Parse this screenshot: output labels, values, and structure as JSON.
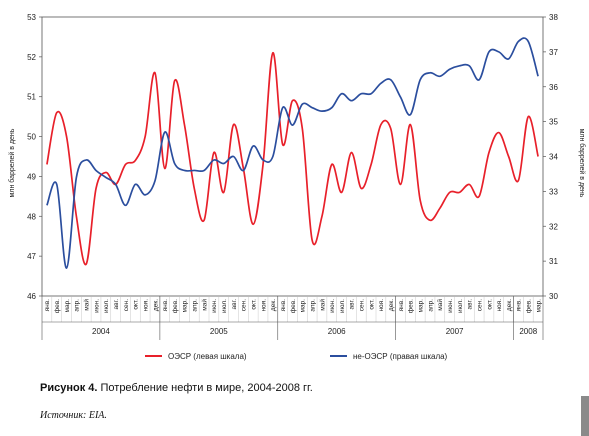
{
  "chart_data": {
    "type": "line",
    "title": "",
    "ylabel_left": "млн баррелей в день",
    "ylabel_right": "млн баррелей в день",
    "ylim_left": [
      46,
      53
    ],
    "ylim_right": [
      30,
      38
    ],
    "yticks_left": [
      "46",
      "47",
      "48",
      "49",
      "50",
      "51",
      "52",
      "53"
    ],
    "yticks_right": [
      "30",
      "31",
      "32",
      "33",
      "34",
      "35",
      "36",
      "37",
      "38"
    ],
    "months": [
      "янв.",
      "фев.",
      "мар.",
      "апр.",
      "май",
      "июн.",
      "июл.",
      "авг.",
      "сен.",
      "окт.",
      "ноя.",
      "дек.",
      "янв.",
      "фев.",
      "мар.",
      "апр.",
      "май",
      "июн.",
      "июл.",
      "авг.",
      "сен.",
      "окт.",
      "ноя.",
      "дек.",
      "янв.",
      "фев.",
      "мар.",
      "апр.",
      "май",
      "июн.",
      "июл.",
      "авг.",
      "сен.",
      "окт.",
      "ноя.",
      "дек.",
      "янв.",
      "фев.",
      "мар.",
      "апр.",
      "май",
      "июн.",
      "июл.",
      "авг.",
      "сен.",
      "окт.",
      "ноя.",
      "дек.",
      "янв.",
      "фев.",
      "мар."
    ],
    "years": [
      {
        "label": "2004",
        "start": 0,
        "end": 12
      },
      {
        "label": "2005",
        "start": 12,
        "end": 24
      },
      {
        "label": "2006",
        "start": 24,
        "end": 36
      },
      {
        "label": "2007",
        "start": 36,
        "end": 48
      },
      {
        "label": "2008",
        "start": 48,
        "end": 51
      }
    ],
    "series": [
      {
        "name": "ОЭСР (левая шкала)",
        "axis": "left",
        "color": "#e8202a",
        "values": [
          49.3,
          50.6,
          50.0,
          48.0,
          46.8,
          48.7,
          49.1,
          48.8,
          49.3,
          49.4,
          50.0,
          51.6,
          49.2,
          51.4,
          50.3,
          48.7,
          47.9,
          49.6,
          48.6,
          50.3,
          49.2,
          47.8,
          49.3,
          52.1,
          49.8,
          50.9,
          50.2,
          47.4,
          48.0,
          49.3,
          48.6,
          49.6,
          48.7,
          49.3,
          50.3,
          50.2,
          48.8,
          50.3,
          48.4,
          47.9,
          48.2,
          48.6,
          48.6,
          48.8,
          48.5,
          49.6,
          50.1,
          49.5,
          48.9,
          50.5,
          49.5
        ]
      },
      {
        "name": "не-ОЭСР (правая шкала)",
        "axis": "right",
        "color": "#2b4e9e",
        "values": [
          32.6,
          33.2,
          30.8,
          33.4,
          33.9,
          33.6,
          33.4,
          33.2,
          32.6,
          33.2,
          32.9,
          33.3,
          34.7,
          33.8,
          33.6,
          33.6,
          33.6,
          33.9,
          33.8,
          34.0,
          33.6,
          34.3,
          33.9,
          34.0,
          35.4,
          34.9,
          35.5,
          35.4,
          35.3,
          35.4,
          35.8,
          35.6,
          35.8,
          35.8,
          36.1,
          36.2,
          35.7,
          35.2,
          36.2,
          36.4,
          36.3,
          36.5,
          36.6,
          36.6,
          36.2,
          37.0,
          37.0,
          36.8,
          37.3,
          37.3,
          36.3
        ]
      }
    ],
    "legend_position": "bottom"
  },
  "caption": {
    "label": "Рисунок 4.",
    "text": " Потребление нефти в мире, 2004-2008 гг."
  },
  "source": "Источник: EIA."
}
